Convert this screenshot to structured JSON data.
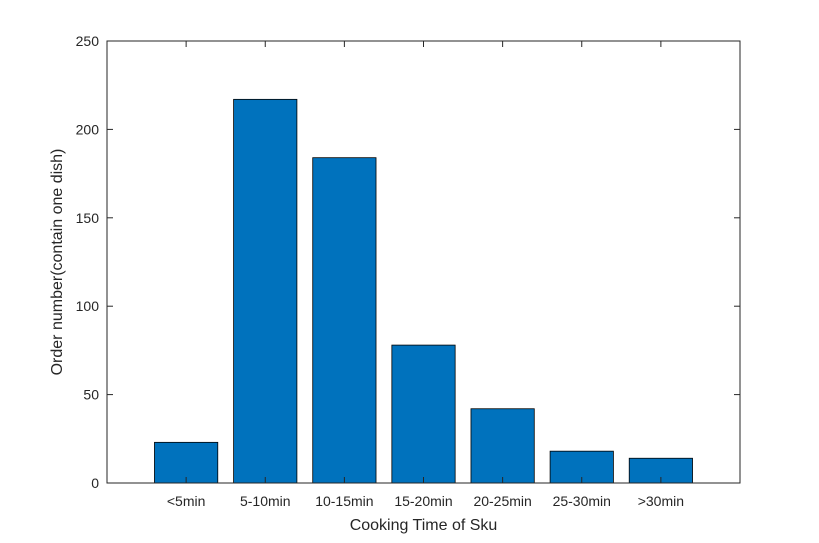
{
  "chart_data": {
    "type": "bar",
    "title": "",
    "xlabel": "Cooking Time of Sku",
    "ylabel": "Order number(contain one dish)",
    "categories": [
      "<5min",
      "5-10min",
      "10-15min",
      "15-20min",
      "20-25min",
      "25-30min",
      ">30min"
    ],
    "values": [
      23,
      217,
      184,
      78,
      42,
      18,
      14
    ],
    "ylim": [
      0,
      250
    ],
    "yticks": [
      "0",
      "50",
      "100",
      "150",
      "200",
      "250"
    ],
    "grid": false,
    "legend": "none",
    "bar_color": "#0072BD",
    "bar_edge_color": "#000000"
  }
}
